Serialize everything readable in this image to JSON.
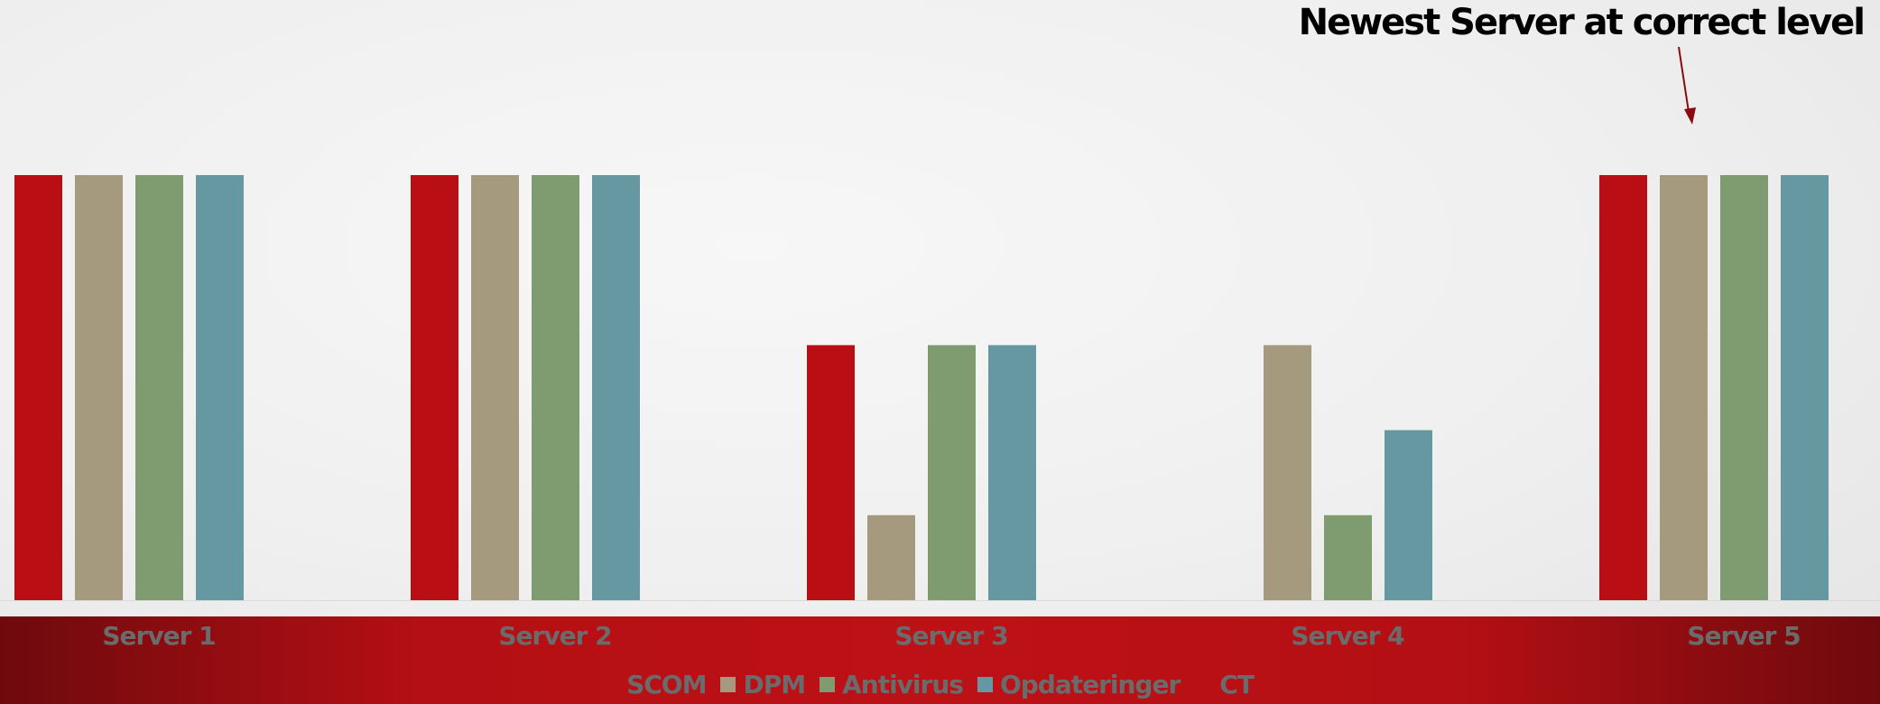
{
  "chart_data": {
    "type": "bar",
    "categories": [
      "Server 1",
      "Server 2",
      "Server 3",
      "Server 4",
      "Server 5"
    ],
    "series": [
      {
        "name": "SCOM",
        "color": "#b90e13",
        "values": [
          5,
          5,
          3,
          0,
          5
        ]
      },
      {
        "name": "DPM",
        "color": "#a69a7e",
        "values": [
          5,
          5,
          1,
          3,
          5
        ]
      },
      {
        "name": "Antivirus",
        "color": "#7f9b70",
        "values": [
          5,
          5,
          3,
          1,
          5
        ]
      },
      {
        "name": "Opdateringer",
        "color": "#6698a2",
        "values": [
          5,
          5,
          3,
          2,
          5
        ]
      },
      {
        "name": "CT",
        "color": "#b90e13",
        "values": [
          0,
          0,
          0,
          0,
          0
        ]
      }
    ],
    "ylim": [
      0,
      5
    ],
    "grid": false,
    "legend_placement": "bottom",
    "annotation": {
      "text": "Newest Server at correct level",
      "target_category": "Server 5",
      "arrow_color": "#8b0a0e"
    }
  }
}
